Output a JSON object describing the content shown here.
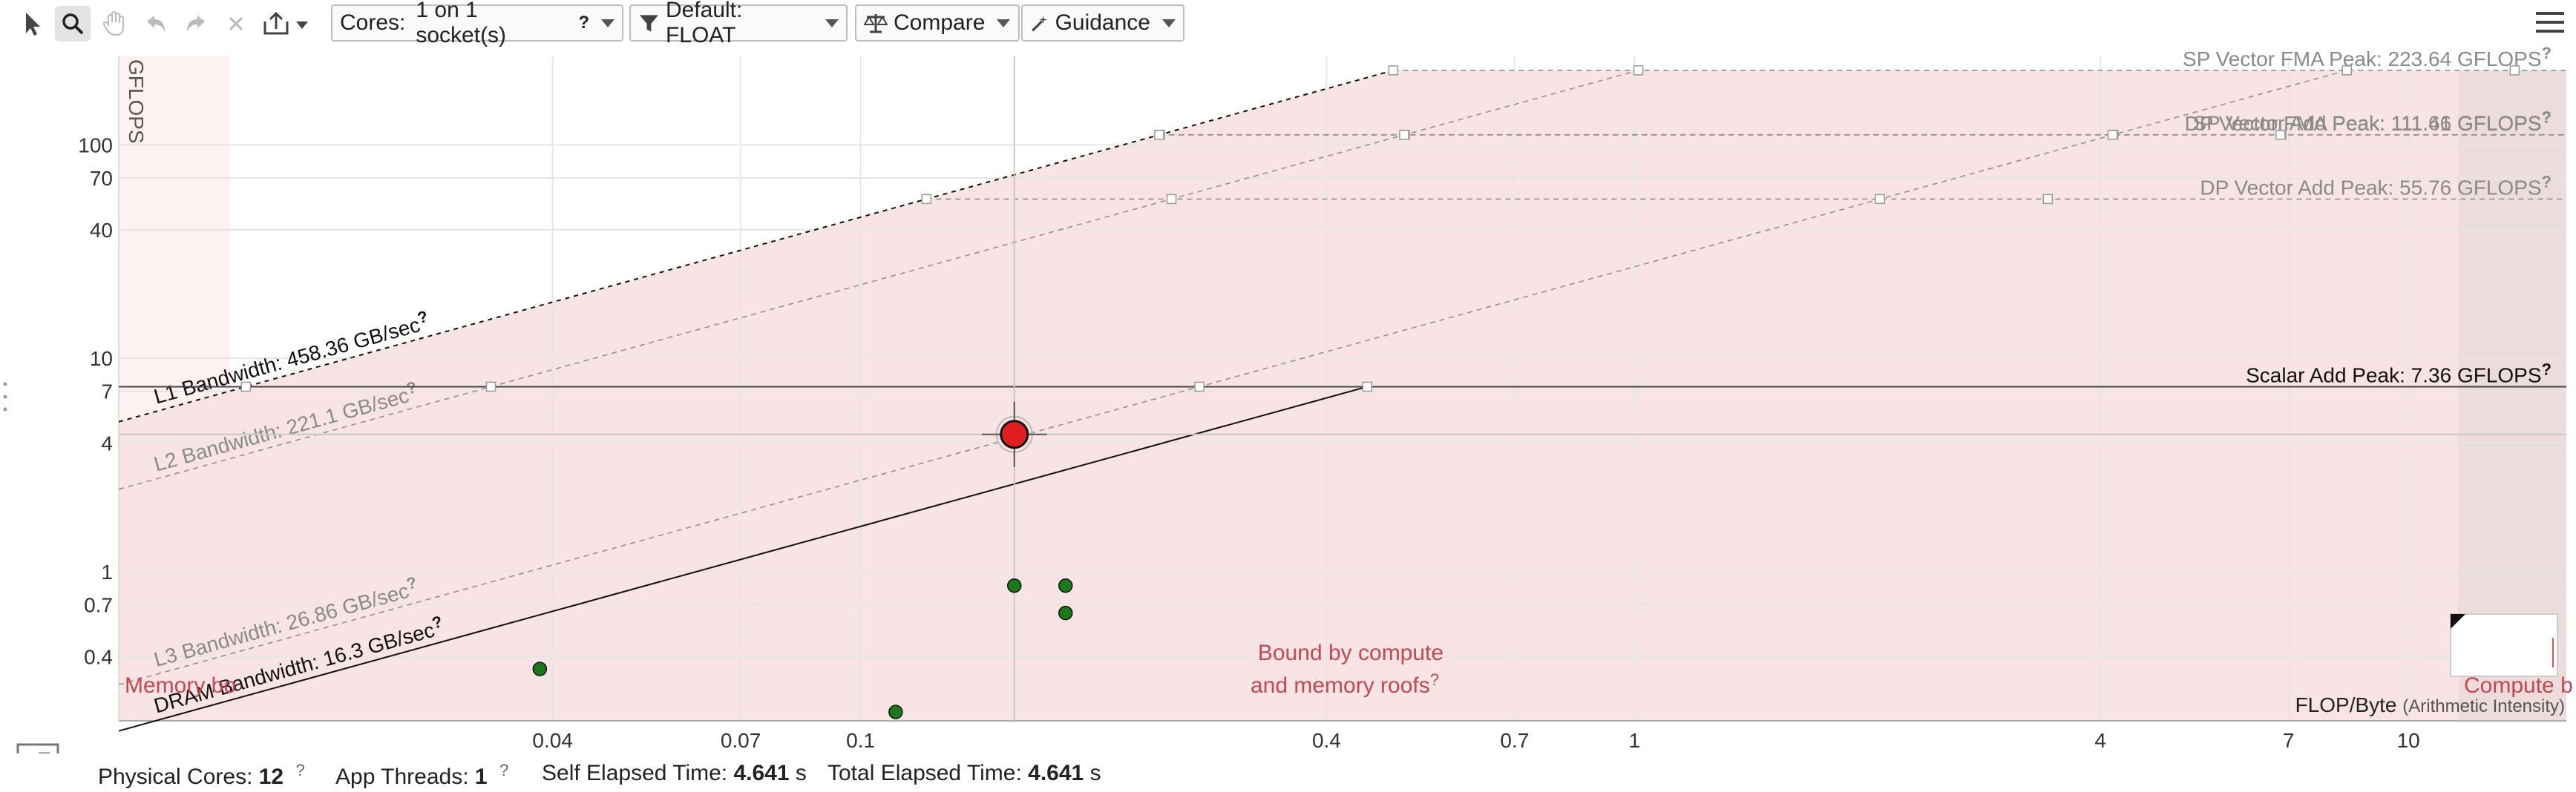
{
  "toolbar": {
    "tools": [
      {
        "name": "pointer-icon",
        "active": false
      },
      {
        "name": "zoom-icon",
        "active": true
      },
      {
        "name": "pan-hand-icon",
        "active": false
      },
      {
        "name": "undo-icon",
        "active": false
      },
      {
        "name": "redo-icon",
        "active": false
      },
      {
        "name": "close-icon",
        "active": false
      },
      {
        "name": "export-icon",
        "active": false
      }
    ],
    "cores_label": "Cores:",
    "cores_value": "1 on 1 socket(s)",
    "cores_help": "?",
    "filter_label": "Default: FLOAT",
    "compare_label": "Compare",
    "guidance_label": "Guidance"
  },
  "chart_data": {
    "type": "scatter",
    "xscale": "log",
    "yscale": "log",
    "xlim": [
      0.011,
      16
    ],
    "ylim": [
      0.2,
      260
    ],
    "ylabel": "GFLOPS",
    "xlabel": "FLOP/Byte",
    "xlabel_suffix": "(Arithmetic Intensity)",
    "xticks": [
      {
        "v": 0.04,
        "label": "0.04"
      },
      {
        "v": 0.07,
        "label": "0.07"
      },
      {
        "v": 0.1,
        "label": "0.1"
      },
      {
        "v": 0.4,
        "label": "0.4"
      },
      {
        "v": 0.7,
        "label": "0.7"
      },
      {
        "v": 1,
        "label": "1"
      },
      {
        "v": 4,
        "label": "4"
      },
      {
        "v": 7,
        "label": "7"
      },
      {
        "v": 10,
        "label": "10"
      }
    ],
    "yticks": [
      {
        "v": 0.4,
        "label": "0.4"
      },
      {
        "v": 0.7,
        "label": "0.7"
      },
      {
        "v": 1,
        "label": "1"
      },
      {
        "v": 4,
        "label": "4"
      },
      {
        "v": 7,
        "label": "7"
      },
      {
        "v": 10,
        "label": "10"
      },
      {
        "v": 40,
        "label": "40"
      },
      {
        "v": 70,
        "label": "70"
      },
      {
        "v": 100,
        "label": "100"
      }
    ],
    "compute_roofs": [
      {
        "label": "SP Vector FMA Peak: 223.64 GFLOPS",
        "value": 223.64,
        "emph": false
      },
      {
        "label": "SP Vector Add Peak: 111.66 GFLOPS",
        "value": 111.66,
        "emph": false
      },
      {
        "label": "DP Vector FMA Peak: 111.41 GFLOPS",
        "value": 111.41,
        "emph": false
      },
      {
        "label": "DP Vector Add Peak: 55.76 GFLOPS",
        "value": 55.76,
        "emph": false
      },
      {
        "label": "Scalar Add Peak: 7.36 GFLOPS",
        "value": 7.36,
        "emph": true
      }
    ],
    "memory_roofs": [
      {
        "label": "L1 Bandwidth: 458.36 GB/sec",
        "value": 458.36,
        "emph": true
      },
      {
        "label": "L2 Bandwidth: 221.1 GB/sec",
        "value": 221.1,
        "emph": false
      },
      {
        "label": "L3 Bandwidth: 26.86 GB/sec",
        "value": 26.86,
        "emph": false
      },
      {
        "label": "DRAM Bandwidth: 16.3 GB/sec",
        "value": 16.3,
        "emph": true
      }
    ],
    "points": [
      {
        "x": 0.158,
        "y": 4.4,
        "color": "#e02020",
        "size": "large",
        "selected": true
      },
      {
        "x": 0.158,
        "y": 0.86,
        "color": "#1a7a1a",
        "size": "small"
      },
      {
        "x": 0.184,
        "y": 0.86,
        "color": "#1a7a1a",
        "size": "small"
      },
      {
        "x": 0.184,
        "y": 0.64,
        "color": "#1a7a1a",
        "size": "small"
      },
      {
        "x": 0.0385,
        "y": 0.35,
        "color": "#1a7a1a",
        "size": "small"
      },
      {
        "x": 0.111,
        "y": 0.22,
        "color": "#1a7a1a",
        "size": "small"
      }
    ],
    "region_labels": {
      "center_line1": "Bound by compute",
      "center_line2": "and memory roofs",
      "left": "Memory bo",
      "right": "Compute b"
    },
    "colors": {
      "region_fill": "#f8e4e4",
      "left_region": "#fdf1f1",
      "right_region": "#ecdcdc",
      "region_text": "#c5474f",
      "roof_dim": "#909090",
      "roof_emph": "#111111"
    }
  },
  "status": {
    "physical_cores_label": "Physical Cores:",
    "physical_cores_value": "12",
    "app_threads_label": "App Threads:",
    "app_threads_value": "1",
    "self_elapsed_label": "Self Elapsed Time:",
    "self_elapsed_value": "4.641",
    "self_elapsed_unit": "s",
    "total_elapsed_label": "Total Elapsed Time:",
    "total_elapsed_value": "4.641",
    "total_elapsed_unit": "s",
    "help": "?"
  }
}
